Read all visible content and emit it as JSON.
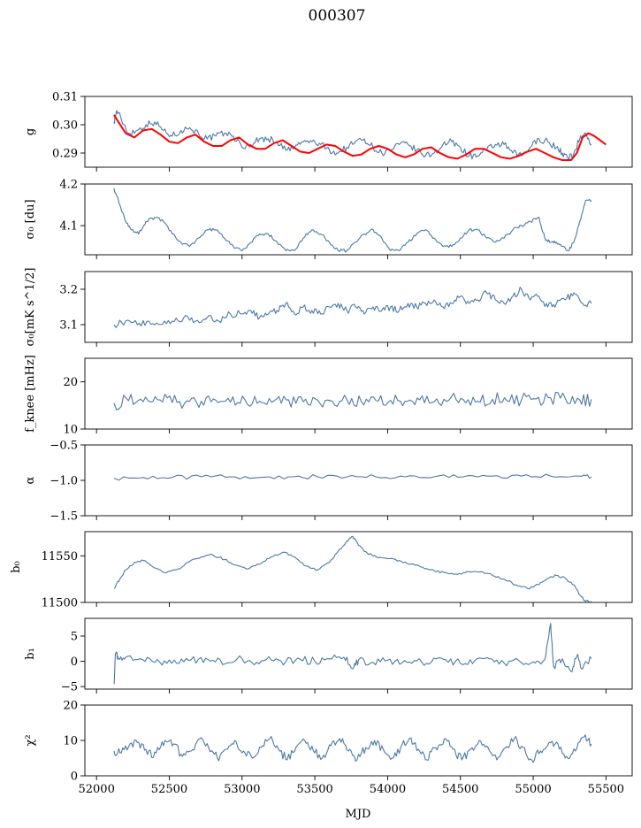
{
  "title": "000307",
  "xlabel": "MJD",
  "x_ticks": [
    52000,
    52500,
    53000,
    53500,
    54000,
    54500,
    55000,
    55500
  ],
  "chart_data": [
    {
      "type": "line",
      "ylabel": "g",
      "xlim": [
        51920,
        55680
      ],
      "ylim": [
        0.285,
        0.31
      ],
      "y_ticks": [
        0.29,
        0.3,
        0.31
      ],
      "y_tick_labels": [
        "0.29",
        "0.30",
        "0.31"
      ],
      "series": [
        {
          "color": "#4c78a8",
          "x": [
            52120,
            52140,
            52170,
            52220,
            52280,
            52340,
            52400,
            52460,
            52520,
            52580,
            52640,
            52700,
            52760,
            52820,
            52880,
            52940,
            53000,
            53060,
            53120,
            53180,
            53240,
            53300,
            53360,
            53420,
            53480,
            53540,
            53600,
            53660,
            53720,
            53780,
            53840,
            53900,
            53960,
            54020,
            54080,
            54140,
            54200,
            54260,
            54320,
            54380,
            54440,
            54500,
            54560,
            54620,
            54680,
            54740,
            54800,
            54860,
            54920,
            54980,
            55040,
            55100,
            55160,
            55200,
            55240,
            55280,
            55320,
            55360,
            55400
          ],
          "values": [
            0.301,
            0.305,
            0.302,
            0.297,
            0.298,
            0.3,
            0.301,
            0.298,
            0.296,
            0.298,
            0.299,
            0.297,
            0.295,
            0.296,
            0.297,
            0.296,
            0.292,
            0.293,
            0.295,
            0.295,
            0.294,
            0.291,
            0.292,
            0.294,
            0.294,
            0.293,
            0.291,
            0.29,
            0.292,
            0.294,
            0.295,
            0.292,
            0.29,
            0.291,
            0.293,
            0.293,
            0.291,
            0.289,
            0.29,
            0.293,
            0.294,
            0.292,
            0.289,
            0.289,
            0.291,
            0.293,
            0.293,
            0.29,
            0.289,
            0.292,
            0.295,
            0.294,
            0.292,
            0.29,
            0.288,
            0.29,
            0.295,
            0.297,
            0.293
          ]
        },
        {
          "color": "#ff0000",
          "x": [
            52120,
            52150,
            52200,
            52260,
            52320,
            52380,
            52440,
            52500,
            52560,
            52620,
            52680,
            52740,
            52800,
            52860,
            52920,
            52980,
            53040,
            53100,
            53160,
            53220,
            53280,
            53340,
            53400,
            53460,
            53520,
            53580,
            53640,
            53700,
            53760,
            53820,
            53880,
            53940,
            54000,
            54060,
            54120,
            54180,
            54240,
            54300,
            54360,
            54420,
            54480,
            54540,
            54600,
            54660,
            54720,
            54780,
            54840,
            54900,
            54960,
            55020,
            55080,
            55140,
            55200,
            55260,
            55300,
            55340,
            55380,
            55420,
            55460,
            55500
          ],
          "values": [
            0.3035,
            0.301,
            0.297,
            0.2955,
            0.298,
            0.2985,
            0.2965,
            0.294,
            0.2935,
            0.2955,
            0.2965,
            0.294,
            0.2925,
            0.2925,
            0.2945,
            0.2955,
            0.293,
            0.2915,
            0.2915,
            0.2935,
            0.2945,
            0.2925,
            0.2905,
            0.29,
            0.2915,
            0.293,
            0.2925,
            0.2905,
            0.289,
            0.2895,
            0.2915,
            0.2925,
            0.2915,
            0.2895,
            0.2885,
            0.2895,
            0.2915,
            0.292,
            0.29,
            0.2885,
            0.288,
            0.2895,
            0.2915,
            0.2915,
            0.29,
            0.2885,
            0.288,
            0.289,
            0.2905,
            0.2915,
            0.29,
            0.2885,
            0.2875,
            0.2875,
            0.29,
            0.2955,
            0.297,
            0.296,
            0.2945,
            0.293
          ]
        }
      ]
    },
    {
      "type": "line",
      "ylabel": "σ₀ [du]",
      "xlim": [
        51920,
        55680
      ],
      "ylim": [
        4.03,
        4.2
      ],
      "y_ticks": [
        4.1,
        4.2
      ],
      "y_tick_labels": [
        "4.1",
        "4.2"
      ],
      "series": [
        {
          "color": "#4c78a8",
          "x": [
            52120,
            52160,
            52200,
            52240,
            52290,
            52340,
            52400,
            52460,
            52520,
            52580,
            52640,
            52700,
            52760,
            52820,
            52880,
            52940,
            53000,
            53060,
            53120,
            53180,
            53240,
            53300,
            53360,
            53420,
            53480,
            53540,
            53600,
            53660,
            53720,
            53780,
            53840,
            53900,
            53960,
            54020,
            54080,
            54140,
            54200,
            54260,
            54320,
            54380,
            54440,
            54500,
            54560,
            54620,
            54680,
            54740,
            54800,
            54860,
            54920,
            54980,
            55040,
            55080,
            55120,
            55160,
            55200,
            55240,
            55280,
            55320,
            55360,
            55400
          ],
          "values": [
            4.19,
            4.15,
            4.11,
            4.09,
            4.08,
            4.11,
            4.12,
            4.11,
            4.08,
            4.06,
            4.05,
            4.07,
            4.09,
            4.09,
            4.07,
            4.05,
            4.04,
            4.06,
            4.08,
            4.08,
            4.06,
            4.04,
            4.04,
            4.07,
            4.09,
            4.08,
            4.06,
            4.04,
            4.04,
            4.06,
            4.08,
            4.09,
            4.07,
            4.04,
            4.04,
            4.06,
            4.08,
            4.09,
            4.07,
            4.05,
            4.05,
            4.07,
            4.09,
            4.09,
            4.07,
            4.06,
            4.07,
            4.09,
            4.1,
            4.11,
            4.12,
            4.07,
            4.06,
            4.06,
            4.05,
            4.04,
            4.06,
            4.11,
            4.16,
            4.16
          ]
        }
      ]
    },
    {
      "type": "line",
      "ylabel": "σ₀[mK s^1/2]",
      "xlim": [
        51920,
        55680
      ],
      "ylim": [
        3.05,
        3.25
      ],
      "y_ticks": [
        3.1,
        3.2
      ],
      "y_tick_labels": [
        "3.1",
        "3.2"
      ],
      "series": [
        {
          "color": "#4c78a8",
          "x": [
            52120,
            52200,
            52280,
            52360,
            52440,
            52520,
            52600,
            52680,
            52760,
            52840,
            52920,
            53000,
            53060,
            53120,
            53180,
            53240,
            53300,
            53360,
            53420,
            53480,
            53540,
            53600,
            53660,
            53720,
            53780,
            53840,
            53900,
            53960,
            54020,
            54080,
            54140,
            54200,
            54260,
            54320,
            54380,
            54440,
            54500,
            54560,
            54620,
            54680,
            54740,
            54800,
            54860,
            54920,
            54980,
            55040,
            55100,
            55160,
            55220,
            55280,
            55340,
            55400
          ],
          "values": [
            3.1,
            3.11,
            3.1,
            3.11,
            3.1,
            3.11,
            3.12,
            3.11,
            3.12,
            3.11,
            3.13,
            3.13,
            3.14,
            3.12,
            3.13,
            3.14,
            3.16,
            3.13,
            3.15,
            3.14,
            3.13,
            3.15,
            3.16,
            3.14,
            3.15,
            3.13,
            3.15,
            3.14,
            3.15,
            3.14,
            3.16,
            3.15,
            3.16,
            3.17,
            3.15,
            3.16,
            3.18,
            3.16,
            3.17,
            3.19,
            3.17,
            3.16,
            3.18,
            3.2,
            3.17,
            3.18,
            3.15,
            3.16,
            3.17,
            3.19,
            3.16,
            3.16
          ]
        }
      ]
    },
    {
      "type": "line",
      "ylabel": "f_knee [mHz]",
      "xlim": [
        51920,
        55680
      ],
      "ylim": [
        10,
        25
      ],
      "y_ticks": [
        10,
        20
      ],
      "y_tick_labels": [
        "10",
        "20"
      ],
      "series": [
        {
          "color": "#4c78a8",
          "x": [
            52120,
            52220,
            52320,
            52420,
            52520,
            52620,
            52720,
            52820,
            52920,
            53020,
            53120,
            53220,
            53320,
            53420,
            53520,
            53620,
            53720,
            53820,
            53920,
            54020,
            54120,
            54220,
            54320,
            54420,
            54520,
            54620,
            54720,
            54820,
            54920,
            55020,
            55120,
            55220,
            55320,
            55400
          ],
          "values": [
            15.5,
            16,
            15.8,
            16.2,
            15.6,
            16,
            15.9,
            16.1,
            15.7,
            16.2,
            15.9,
            16,
            16.2,
            15.8,
            16.1,
            15.9,
            16.2,
            15.8,
            16,
            16.1,
            15.9,
            16.2,
            15.8,
            16.1,
            16.2,
            15.9,
            16.3,
            16,
            16.2,
            16.4,
            16.6,
            16.5,
            16.2,
            16.3
          ]
        }
      ]
    },
    {
      "type": "line",
      "ylabel": "α",
      "xlim": [
        51920,
        55680
      ],
      "ylim": [
        -1.5,
        -0.5
      ],
      "y_ticks": [
        -1.5,
        -1.0,
        -0.5
      ],
      "y_tick_labels": [
        "−1.5",
        "−1.0",
        "−0.5"
      ],
      "series": [
        {
          "color": "#4c78a8",
          "x": [
            52120,
            52320,
            52520,
            52720,
            52920,
            53120,
            53320,
            53520,
            53720,
            53920,
            54120,
            54320,
            54520,
            54720,
            54920,
            55120,
            55320,
            55400
          ],
          "values": [
            -0.97,
            -0.96,
            -0.96,
            -0.95,
            -0.95,
            -0.96,
            -0.95,
            -0.95,
            -0.95,
            -0.95,
            -0.95,
            -0.95,
            -0.95,
            -0.94,
            -0.94,
            -0.94,
            -0.94,
            -0.95
          ]
        }
      ]
    },
    {
      "type": "line",
      "ylabel": "b₀",
      "xlim": [
        51920,
        55680
      ],
      "ylim": [
        11500,
        11576
      ],
      "y_ticks": [
        11500,
        11550
      ],
      "y_tick_labels": [
        "11500",
        "11550"
      ],
      "series": [
        {
          "color": "#4c78a8",
          "x": [
            52120,
            52160,
            52200,
            52260,
            52320,
            52400,
            52480,
            52560,
            52640,
            52720,
            52800,
            52880,
            52960,
            53040,
            53120,
            53200,
            53280,
            53360,
            53440,
            53520,
            53600,
            53660,
            53720,
            53760,
            53800,
            53860,
            53920,
            54000,
            54080,
            54160,
            54240,
            54320,
            54400,
            54480,
            54560,
            54640,
            54720,
            54800,
            54880,
            54960,
            55040,
            55100,
            55160,
            55220,
            55280,
            55320,
            55360,
            55400
          ],
          "values": [
            11515,
            11525,
            11535,
            11543,
            11545,
            11537,
            11532,
            11536,
            11544,
            11549,
            11551,
            11546,
            11540,
            11536,
            11541,
            11549,
            11554,
            11549,
            11539,
            11535,
            11543,
            11555,
            11566,
            11571,
            11561,
            11553,
            11549,
            11547,
            11545,
            11541,
            11538,
            11534,
            11532,
            11530,
            11533,
            11533,
            11529,
            11525,
            11519,
            11515,
            11519,
            11526,
            11529,
            11526,
            11519,
            11508,
            11501,
            11501
          ]
        }
      ]
    },
    {
      "type": "line",
      "ylabel": "b₁",
      "xlim": [
        51920,
        55680
      ],
      "ylim": [
        -5.5,
        8.5
      ],
      "y_ticks": [
        -5,
        0,
        5
      ],
      "y_tick_labels": [
        "−5",
        "0",
        "5"
      ],
      "series": [
        {
          "color": "#4c78a8",
          "x": [
            52120,
            52130,
            52150,
            52200,
            52300,
            52400,
            52500,
            52600,
            52700,
            52800,
            52900,
            53000,
            53100,
            53200,
            53300,
            53400,
            53500,
            53600,
            53700,
            53760,
            53800,
            53900,
            54000,
            54100,
            54200,
            54300,
            54400,
            54500,
            54600,
            54700,
            54800,
            54900,
            55000,
            55080,
            55120,
            55140,
            55200,
            55260,
            55300,
            55340,
            55400
          ],
          "values": [
            -4.5,
            1.5,
            0.5,
            0.8,
            0.5,
            -0.2,
            0.3,
            -0.1,
            0.4,
            0.2,
            -0.3,
            0.5,
            -0.2,
            0.3,
            -0.1,
            0.4,
            0,
            0.5,
            0.8,
            -1.5,
            0.3,
            -0.2,
            0.2,
            -0.3,
            0.1,
            -0.2,
            0.3,
            -0.4,
            0.2,
            0.5,
            -0.3,
            0.2,
            -0.1,
            0.4,
            7.5,
            -1,
            0.5,
            -2,
            1,
            -1.5,
            0.5
          ]
        }
      ]
    },
    {
      "type": "line",
      "ylabel": "χ²",
      "xlim": [
        51920,
        55680
      ],
      "ylim": [
        0,
        20
      ],
      "y_ticks": [
        0,
        10,
        20
      ],
      "y_tick_labels": [
        "0",
        "10",
        "20"
      ],
      "series": [
        {
          "color": "#4c78a8",
          "x": [
            52120,
            52170,
            52230,
            52290,
            52350,
            52410,
            52470,
            52530,
            52590,
            52650,
            52710,
            52770,
            52830,
            52890,
            52950,
            53010,
            53070,
            53130,
            53190,
            53250,
            53310,
            53370,
            53430,
            53490,
            53550,
            53610,
            53670,
            53730,
            53790,
            53850,
            53910,
            53970,
            54030,
            54090,
            54150,
            54210,
            54270,
            54330,
            54390,
            54450,
            54510,
            54570,
            54630,
            54690,
            54750,
            54810,
            54870,
            54930,
            54990,
            55050,
            55110,
            55170,
            55230,
            55290,
            55350,
            55400
          ],
          "values": [
            7,
            6.5,
            9,
            9.5,
            6,
            6.5,
            10,
            9,
            5.5,
            7,
            10.5,
            8,
            5,
            7.5,
            10,
            7,
            5,
            8,
            10.5,
            7.5,
            4.5,
            8,
            10,
            7,
            5,
            8.5,
            10.5,
            7,
            4.5,
            8,
            10,
            7.5,
            5,
            8,
            10.5,
            7.5,
            4.5,
            8,
            10.5,
            7.5,
            4.5,
            7.5,
            10,
            8,
            4.5,
            8,
            10.5,
            8,
            4.5,
            7,
            9.5,
            9,
            5.5,
            7,
            11,
            9
          ]
        }
      ]
    }
  ]
}
